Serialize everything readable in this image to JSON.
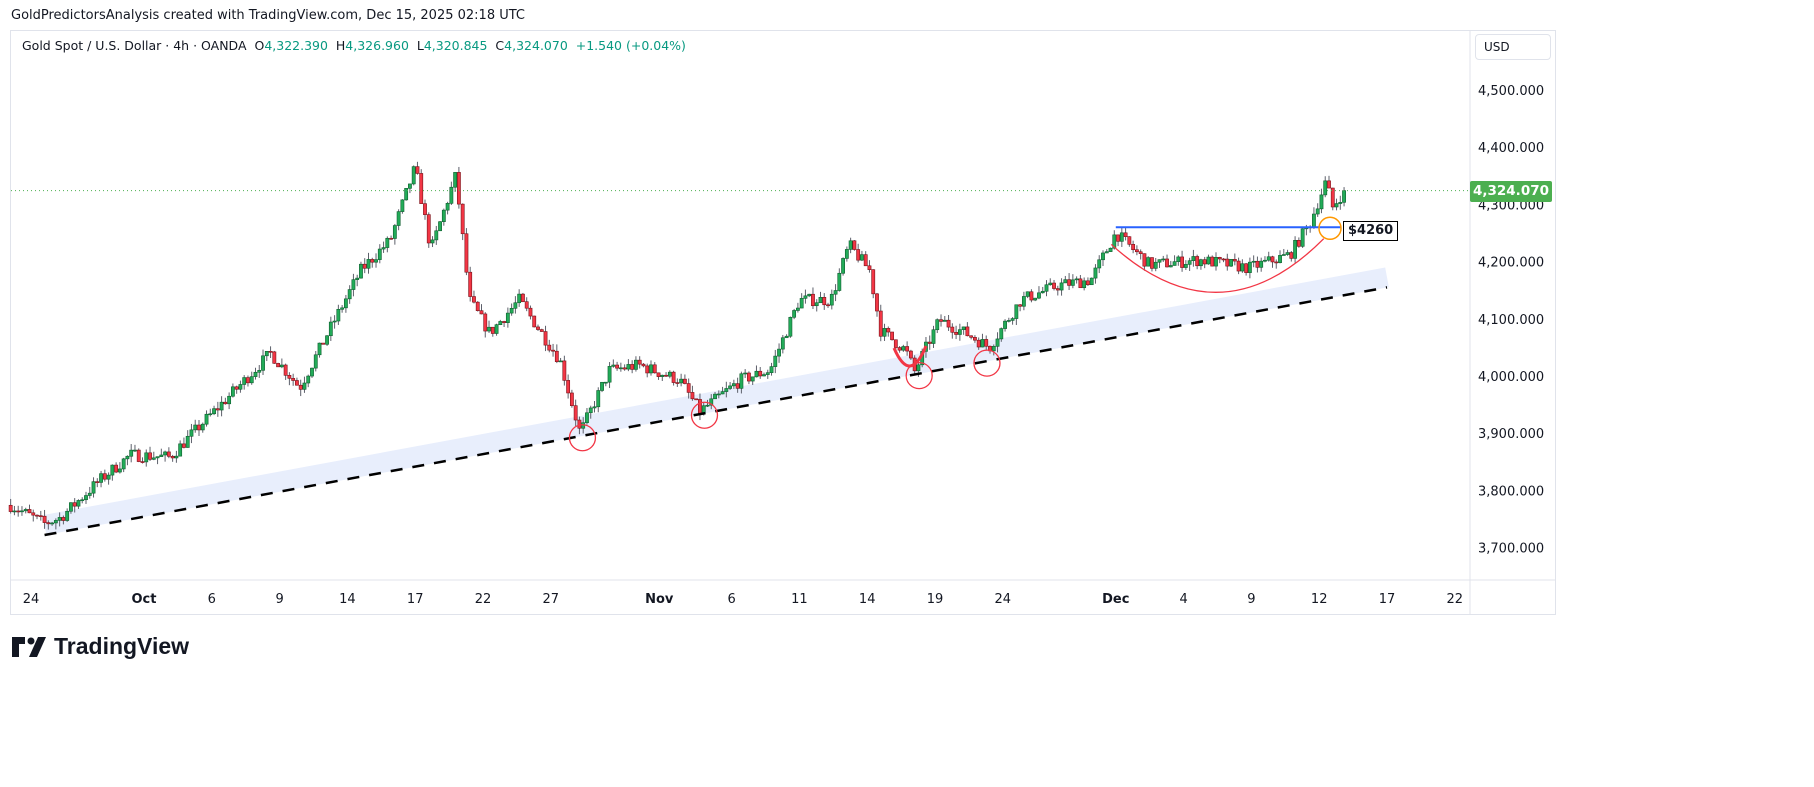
{
  "header": {
    "credit": "GoldPredictorsAnalysis created with TradingView.com, Dec 15, 2025 02:18 UTC",
    "symbol": "Gold Spot / U.S. Dollar · 4h · OANDA",
    "open_label": "O",
    "open": "4,322.390",
    "high_label": "H",
    "high": "4,326.960",
    "low_label": "L",
    "low": "4,320.845",
    "close_label": "C",
    "close": "4,324.070",
    "change": "+1.540 (+0.04%)"
  },
  "currency": "USD",
  "last_price_tag": "4,324.070",
  "level_label": "$4260",
  "logo_text": "TradingView",
  "colors": {
    "up": "#22ab58",
    "down": "#f23645",
    "last": "#4caf50",
    "trend_band": "#e8eefc",
    "resistance": "#2962ff",
    "markers": "#f23645",
    "breakout": "#ff9800"
  },
  "chart_data": {
    "type": "candlestick",
    "title": "Gold Spot / U.S. Dollar · 4h · OANDA",
    "ylim": [
      3660,
      4560
    ],
    "y_ticks": [
      "4,500.000",
      "4,400.000",
      "4,300.000",
      "4,200.000",
      "4,100.000",
      "4,000.000",
      "3,900.000",
      "3,800.000",
      "3,700.000"
    ],
    "y_tick_values": [
      4500,
      4400,
      4300,
      4200,
      4100,
      4000,
      3900,
      3800,
      3700
    ],
    "x_unit": "trading days since Sep 24",
    "x_ticks": [
      {
        "label": "24",
        "day": 0
      },
      {
        "label": "Oct",
        "day": 5
      },
      {
        "label": "6",
        "day": 8
      },
      {
        "label": "9",
        "day": 11
      },
      {
        "label": "14",
        "day": 14
      },
      {
        "label": "17",
        "day": 17
      },
      {
        "label": "22",
        "day": 20
      },
      {
        "label": "27",
        "day": 23
      },
      {
        "label": "Nov",
        "day": 27.8
      },
      {
        "label": "6",
        "day": 31
      },
      {
        "label": "11",
        "day": 34
      },
      {
        "label": "14",
        "day": 37
      },
      {
        "label": "19",
        "day": 40
      },
      {
        "label": "24",
        "day": 43
      },
      {
        "label": "Dec",
        "day": 48
      },
      {
        "label": "4",
        "day": 51
      },
      {
        "label": "9",
        "day": 54
      },
      {
        "label": "12",
        "day": 57
      },
      {
        "label": "17",
        "day": 60
      },
      {
        "label": "22",
        "day": 63
      }
    ],
    "price_path": [
      [
        -0.9,
        3774
      ],
      [
        0.6,
        3742
      ],
      [
        1.3,
        3752
      ],
      [
        3.05,
        3818
      ],
      [
        4.4,
        3862
      ],
      [
        6.15,
        3858
      ],
      [
        7.5,
        3914
      ],
      [
        9.25,
        3984
      ],
      [
        10.6,
        4040
      ],
      [
        11.9,
        3980
      ],
      [
        13.2,
        4080
      ],
      [
        14.6,
        4185
      ],
      [
        15.9,
        4238
      ],
      [
        17.0,
        4365
      ],
      [
        17.7,
        4220
      ],
      [
        18.8,
        4351
      ],
      [
        19.4,
        4133
      ],
      [
        20.3,
        4075
      ],
      [
        21.6,
        4133
      ],
      [
        23.4,
        4028
      ],
      [
        24.3,
        3900
      ],
      [
        25.6,
        4010
      ],
      [
        26.9,
        4019
      ],
      [
        28.7,
        3993
      ],
      [
        29.6,
        3938
      ],
      [
        31.4,
        3993
      ],
      [
        32.7,
        4010
      ],
      [
        34.0,
        4133
      ],
      [
        35.4,
        4133
      ],
      [
        36.2,
        4229
      ],
      [
        37.1,
        4185
      ],
      [
        37.6,
        4080
      ],
      [
        38.7,
        4045
      ],
      [
        39.1,
        4008
      ],
      [
        40.2,
        4098
      ],
      [
        41.5,
        4072
      ],
      [
        42.4,
        4050
      ],
      [
        43.8,
        4133
      ],
      [
        45.5,
        4159
      ],
      [
        46.9,
        4168
      ],
      [
        48.0,
        4250
      ],
      [
        49.5,
        4194
      ],
      [
        51.7,
        4203
      ],
      [
        53.9,
        4189
      ],
      [
        55.7,
        4212
      ],
      [
        56.6,
        4268
      ],
      [
        57.3,
        4340
      ],
      [
        57.6,
        4295
      ],
      [
        58.1,
        4324
      ]
    ],
    "last_close": 4324.07,
    "annotations": {
      "ascending_trendline": [
        [
          0.6,
          3722
        ],
        [
          60,
          4155
        ]
      ],
      "support_touches_days": [
        24.4,
        29.8,
        39.3,
        42.3
      ],
      "resistance_level": 4260,
      "rounding_bottom": [
        [
          47.8,
          4230
        ],
        [
          52.6,
          4145
        ],
        [
          57.2,
          4240
        ]
      ]
    }
  }
}
